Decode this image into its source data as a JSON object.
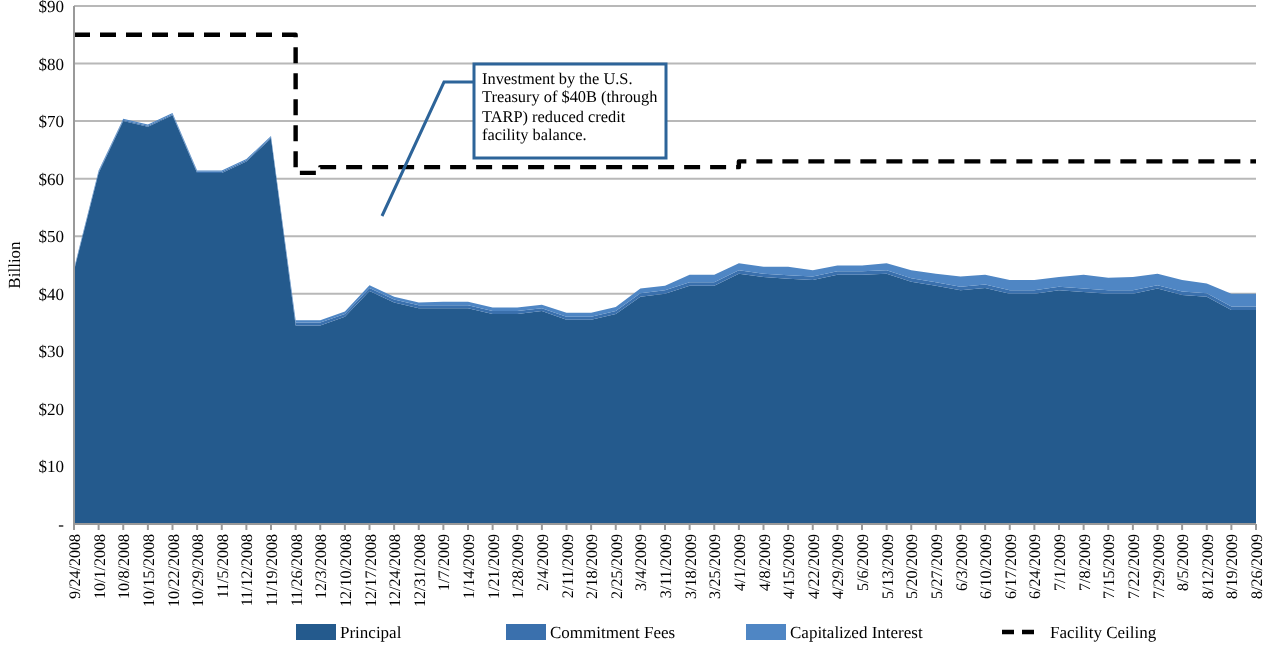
{
  "chart_data": {
    "type": "area",
    "stacked": true,
    "ylabel": "Billion",
    "categories": [
      "9/24/2008",
      "10/1/2008",
      "10/8/2008",
      "10/15/2008",
      "10/22/2008",
      "10/29/2008",
      "11/5/2008",
      "11/12/2008",
      "11/19/2008",
      "11/26/2008",
      "12/3/2008",
      "12/10/2008",
      "12/17/2008",
      "12/24/2008",
      "12/31/2008",
      "1/7/2009",
      "1/14/2009",
      "1/21/2009",
      "1/28/2009",
      "2/4/2009",
      "2/11/2009",
      "2/18/2009",
      "2/25/2009",
      "3/4/2009",
      "3/11/2009",
      "3/18/2009",
      "3/25/2009",
      "4/1/2009",
      "4/8/2009",
      "4/15/2009",
      "4/22/2009",
      "4/29/2009",
      "5/6/2009",
      "5/13/2009",
      "5/20/2009",
      "5/27/2009",
      "6/3/2009",
      "6/10/2009",
      "6/17/2009",
      "6/24/2009",
      "7/1/2009",
      "7/8/2009",
      "7/15/2009",
      "7/22/2009",
      "7/29/2009",
      "8/5/2009",
      "8/12/2009",
      "8/19/2009",
      "8/26/2009"
    ],
    "series": [
      {
        "name": "Principal",
        "color": "#245a8d",
        "values": [
          44,
          61,
          70,
          69,
          71,
          61,
          61,
          63,
          67,
          34.5,
          34.5,
          36,
          40.5,
          38.5,
          37.5,
          37.5,
          37.5,
          36.5,
          36.5,
          37,
          35.5,
          35.5,
          36.5,
          39.5,
          40,
          41.4,
          41.4,
          43.5,
          42.9,
          42.6,
          42.4,
          43.3,
          43.3,
          43.5,
          42.1,
          41.4,
          40.6,
          41,
          40,
          40,
          40.6,
          40.3,
          40,
          40,
          40.9,
          39.8,
          39.5,
          37.2,
          37.2
        ]
      },
      {
        "name": "Commitment Fees",
        "color": "#3a70ad",
        "values": [
          0.2,
          0.2,
          0.2,
          0.2,
          0.2,
          0.2,
          0.2,
          0.2,
          0.2,
          0.5,
          0.5,
          0.5,
          0.5,
          0.5,
          0.5,
          0.5,
          0.5,
          0.5,
          0.5,
          0.5,
          0.5,
          0.5,
          0.5,
          0.6,
          0.6,
          0.6,
          0.6,
          0.6,
          0.6,
          0.6,
          0.6,
          0.6,
          0.6,
          0.6,
          0.6,
          0.6,
          0.6,
          0.6,
          0.6,
          0.6,
          0.6,
          0.6,
          0.6,
          0.6,
          0.6,
          0.6,
          0.6,
          0.6,
          0.6
        ]
      },
      {
        "name": "Capitalized Interest",
        "color": "#4f86c4",
        "values": [
          0.2,
          0.2,
          0.2,
          0.2,
          0.2,
          0.2,
          0.2,
          0.2,
          0.2,
          0.4,
          0.4,
          0.4,
          0.5,
          0.5,
          0.5,
          0.6,
          0.6,
          0.6,
          0.6,
          0.6,
          0.7,
          0.7,
          0.7,
          0.8,
          0.8,
          1.3,
          1.3,
          1.2,
          1.2,
          1.5,
          1.1,
          1,
          1,
          1.2,
          1.4,
          1.5,
          1.8,
          1.7,
          1.8,
          1.8,
          1.7,
          2.4,
          2.2,
          2.3,
          2,
          2,
          1.7,
          2.2,
          2.2
        ]
      },
      {
        "name": "Facility Ceiling",
        "type": "step",
        "color": "#000000",
        "line_style": "dashed",
        "values": [
          85,
          85,
          85,
          85,
          85,
          85,
          85,
          85,
          85,
          61,
          62,
          62,
          62,
          62,
          62,
          62,
          62,
          62,
          62,
          62,
          62,
          62,
          62,
          62,
          62,
          62,
          62,
          63,
          63,
          63,
          63,
          63,
          63,
          63,
          63,
          63,
          63,
          63,
          63,
          63,
          63,
          63,
          63,
          63,
          63,
          63,
          63,
          63,
          63
        ]
      }
    ],
    "ylim": [
      0,
      90
    ],
    "yticks": [
      {
        "value": 0,
        "label": "-"
      },
      {
        "value": 10,
        "label": "$10"
      },
      {
        "value": 20,
        "label": "$20"
      },
      {
        "value": 30,
        "label": "$30"
      },
      {
        "value": 40,
        "label": "$40"
      },
      {
        "value": 50,
        "label": "$50"
      },
      {
        "value": 60,
        "label": "$60"
      },
      {
        "value": 70,
        "label": "$70"
      },
      {
        "value": 80,
        "label": "$80"
      },
      {
        "value": 90,
        "label": "$90"
      }
    ],
    "grid": "y",
    "legend": "bottom",
    "annotations": [
      "Investment by the U.S. Treasury of $40B (through TARP) reduced credit facility balance."
    ]
  }
}
